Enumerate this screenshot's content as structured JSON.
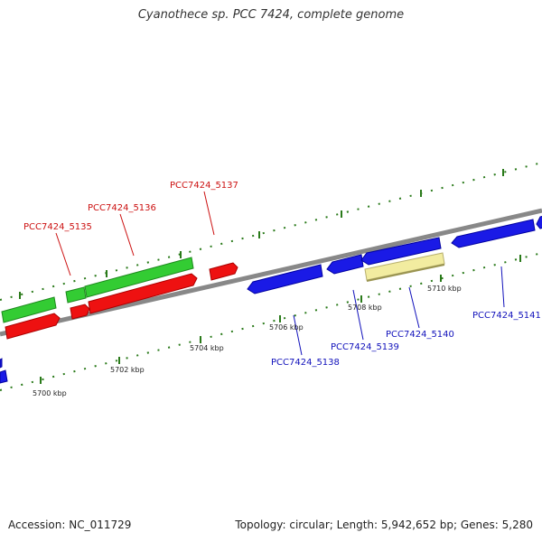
{
  "title": "Cyanothece sp. PCC 7424, complete genome",
  "footer": {
    "accession": "Accession: NC_011729",
    "summary": "Topology: circular; Length: 5,942,652 bp; Genes: 5,280"
  },
  "ticks": [
    "5700 kbp",
    "5702 kbp",
    "5704 kbp",
    "5706 kbp",
    "5708 kbp",
    "5710 kbp"
  ],
  "genes": {
    "forward": [
      "PCC7424_5135",
      "PCC7424_5136",
      "PCC7424_5137"
    ],
    "reverse": [
      "PCC7424_5138",
      "PCC7424_5139",
      "PCC7424_5140",
      "PCC7424_5141"
    ]
  },
  "colors": {
    "forward_cds": "#ee1111",
    "forward_gene": "#33cc33",
    "reverse_cds": "#1a1ae6",
    "highlight": "#f2eca0",
    "backbone": "#888888",
    "ticks": "#2a7a1a",
    "forward_label": "#cc1111",
    "reverse_label": "#1111bb"
  }
}
